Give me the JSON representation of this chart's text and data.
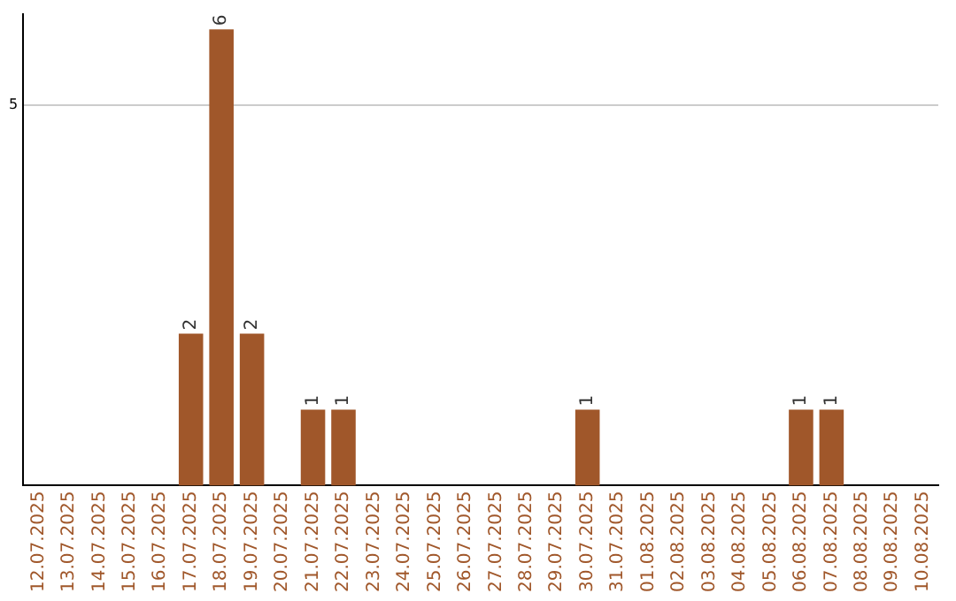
{
  "chart_data": {
    "type": "bar",
    "categories": [
      "12.07.2025",
      "13.07.2025",
      "14.07.2025",
      "15.07.2025",
      "16.07.2025",
      "17.07.2025",
      "18.07.2025",
      "19.07.2025",
      "20.07.2025",
      "21.07.2025",
      "22.07.2025",
      "23.07.2025",
      "24.07.2025",
      "25.07.2025",
      "26.07.2025",
      "27.07.2025",
      "28.07.2025",
      "29.07.2025",
      "30.07.2025",
      "31.07.2025",
      "01.08.2025",
      "02.08.2025",
      "03.08.2025",
      "04.08.2025",
      "05.08.2025",
      "06.08.2025",
      "07.08.2025",
      "08.08.2025",
      "09.08.2025",
      "10.08.2025"
    ],
    "values": [
      0,
      0,
      0,
      0,
      0,
      2,
      6,
      2,
      0,
      1,
      1,
      0,
      0,
      0,
      0,
      0,
      0,
      0,
      1,
      0,
      0,
      0,
      0,
      0,
      0,
      1,
      1,
      0,
      0,
      0
    ],
    "color": "#a0572a",
    "value_labels": [
      null,
      null,
      null,
      null,
      null,
      "2",
      "6",
      "2",
      null,
      "1",
      "1",
      null,
      null,
      null,
      null,
      null,
      null,
      null,
      "1",
      null,
      null,
      null,
      null,
      null,
      null,
      "1",
      "1",
      null,
      null,
      null
    ],
    "ylim": [
      0,
      6.2
    ],
    "yticks": [
      5
    ],
    "grid": "y",
    "legend": false
  }
}
